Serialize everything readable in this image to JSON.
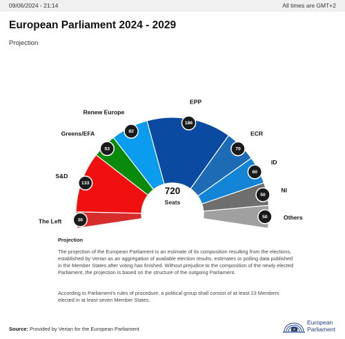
{
  "header": {
    "timestamp": "09/06/2024 - 21:14",
    "timezone": "All times are GMT+2"
  },
  "title": "European Parliament 2024 - 2029",
  "subtitle": "Projection",
  "chart_data": {
    "type": "pie",
    "variant": "semicircle",
    "total": 720,
    "total_label": "Seats",
    "parties": [
      {
        "name": "The Left",
        "seats": 36,
        "color": "#d62c2c"
      },
      {
        "name": "S&D",
        "seats": 133,
        "color": "#f01010"
      },
      {
        "name": "Greens/EFA",
        "seats": 53,
        "color": "#0a8a0a"
      },
      {
        "name": "Renew Europe",
        "seats": 82,
        "color": "#0b9cf0"
      },
      {
        "name": "EPP",
        "seats": 186,
        "color": "#0a4aa0"
      },
      {
        "name": "ECR",
        "seats": 70,
        "color": "#1d6ab5"
      },
      {
        "name": "ID",
        "seats": 60,
        "color": "#1484d6"
      },
      {
        "name": "NI",
        "seats": 50,
        "color": "#6e6e6e"
      },
      {
        "name": "Others",
        "seats": 50,
        "color": "#a0a0a0"
      }
    ]
  },
  "notes": {
    "heading": "Projection",
    "p1": "The projection of the European Parliament is an estimate of its composition resulting from the elections, established by Verian as an aggregation of available election results, estimates or polling data published in the Member States after voting has finished. Without prejudice to the composition of the newly elected Parliament, the projection is based on the structure of the outgoing Parliament.",
    "p2": "According to Parliament's rules of procedure, a political group shall consist of at least 23 Members elected in at least seven Member States."
  },
  "source": {
    "label": "Source:",
    "text": "Provided by Verian for the European Parliament"
  },
  "logo": {
    "line1": "European",
    "line2": "Parliament"
  }
}
